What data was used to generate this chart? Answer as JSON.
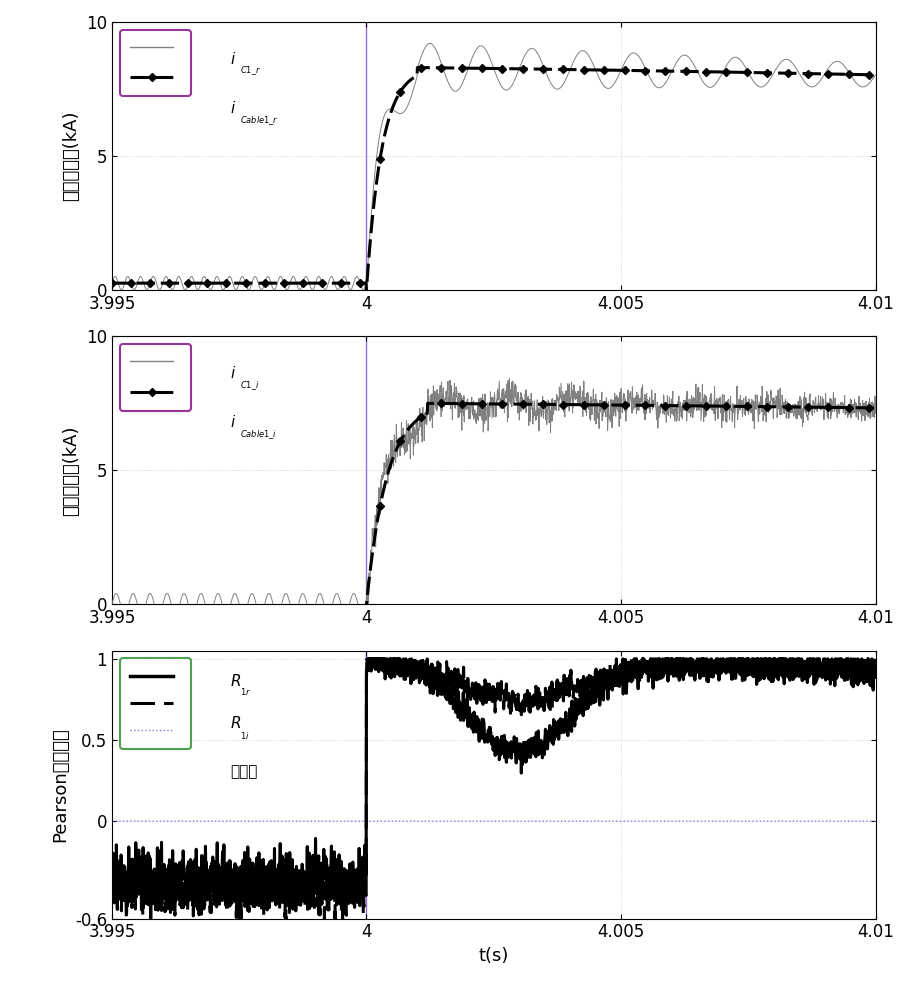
{
  "xlim": [
    3.995,
    4.01
  ],
  "xticks": [
    3.995,
    4.0,
    4.005,
    4.01
  ],
  "xticklabels": [
    "3.995",
    "4",
    "4.005",
    "4.01"
  ],
  "xlabel": "t(s)",
  "plot1": {
    "ylim": [
      0,
      10
    ],
    "yticks": [
      0,
      5,
      10
    ],
    "ylabel": "整流俧电流(kA)"
  },
  "plot2": {
    "ylim": [
      0,
      10
    ],
    "yticks": [
      0,
      5,
      10
    ],
    "ylabel": "逃变俧电流(kA)"
  },
  "plot3": {
    "ylim": [
      -0.6,
      1.05
    ],
    "yticks": [
      -0.6,
      0,
      0.5,
      1
    ],
    "yticklabels": [
      "-0.6",
      "0",
      "0.5",
      "1"
    ],
    "ylabel": "Pearson相关系数"
  },
  "fault_time": 4.0,
  "thin_color": "#808080",
  "thick_color": "#000000",
  "vline_color": "#9370DB",
  "threshold_color": "#9370DB",
  "legend1_border": "#800080",
  "legend2_border": "#800080",
  "legend3_border": "#228B22",
  "bg_color": "#ffffff"
}
